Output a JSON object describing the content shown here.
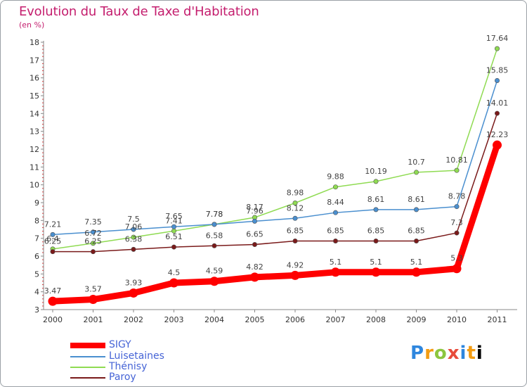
{
  "header": {
    "title": "Evolution du Taux de Taxe d'Habitation",
    "unit": "(en %)"
  },
  "logo": {
    "text": "Proxiti"
  },
  "chart_data": {
    "type": "line",
    "title": "Evolution du Taux de Taxe d'Habitation",
    "subtitle": "(en %)",
    "xlabel": "",
    "ylabel": "",
    "x": [
      "2000",
      "2001",
      "2002",
      "2003",
      "2004",
      "2005",
      "2006",
      "2007",
      "2008",
      "2009",
      "2010",
      "2011"
    ],
    "ylim": [
      3,
      18
    ],
    "yticks": [
      3,
      4,
      5,
      6,
      7,
      8,
      9,
      10,
      11,
      12,
      13,
      14,
      15,
      16,
      17,
      18
    ],
    "grid": false,
    "legend_position": "bottom-left",
    "series": [
      {
        "name": "SIGY",
        "color": "#ff0000",
        "values": [
          3.47,
          3.57,
          3.93,
          4.5,
          4.59,
          4.82,
          4.92,
          5.1,
          5.1,
          5.1,
          5.3,
          12.23
        ],
        "labels": [
          "3.47",
          "3.57",
          "3.93",
          "4.5",
          "4.59",
          "4.82",
          "4.92",
          "5.1",
          "5.1",
          "5.1",
          "5.3",
          "12.23"
        ]
      },
      {
        "name": "Luisetaines",
        "color": "#4a8fcf",
        "values": [
          7.21,
          7.35,
          7.5,
          7.65,
          7.78,
          7.96,
          8.12,
          8.44,
          8.61,
          8.61,
          8.78,
          15.85
        ],
        "labels": [
          "7.21",
          "7.35",
          "7.5",
          "7.65",
          "7.78",
          "7.96",
          "8.12",
          "8.44",
          "8.61",
          "8.61",
          "8.78",
          "15.85"
        ]
      },
      {
        "name": "Thénisy",
        "color": "#8fdb52",
        "values": [
          6.4,
          6.72,
          7.06,
          7.41,
          7.78,
          8.17,
          8.98,
          9.88,
          10.19,
          10.7,
          10.81,
          17.64
        ],
        "labels": [
          "6.4",
          "6.72",
          "7.06",
          "7.41",
          "7.78",
          "8.17",
          "8.98",
          "9.88",
          "10.19",
          "10.7",
          "10.81",
          "17.64"
        ]
      },
      {
        "name": "Paroy",
        "color": "#7a1a1a",
        "values": [
          6.25,
          6.25,
          6.38,
          6.51,
          6.58,
          6.65,
          6.85,
          6.85,
          6.85,
          6.85,
          7.3,
          14.01
        ],
        "labels": [
          "6.25",
          "6.25",
          "6.38",
          "6.51",
          "6.58",
          "6.65",
          "6.85",
          "6.85",
          "6.85",
          "6.85",
          "7.3",
          "14.01"
        ]
      }
    ]
  }
}
